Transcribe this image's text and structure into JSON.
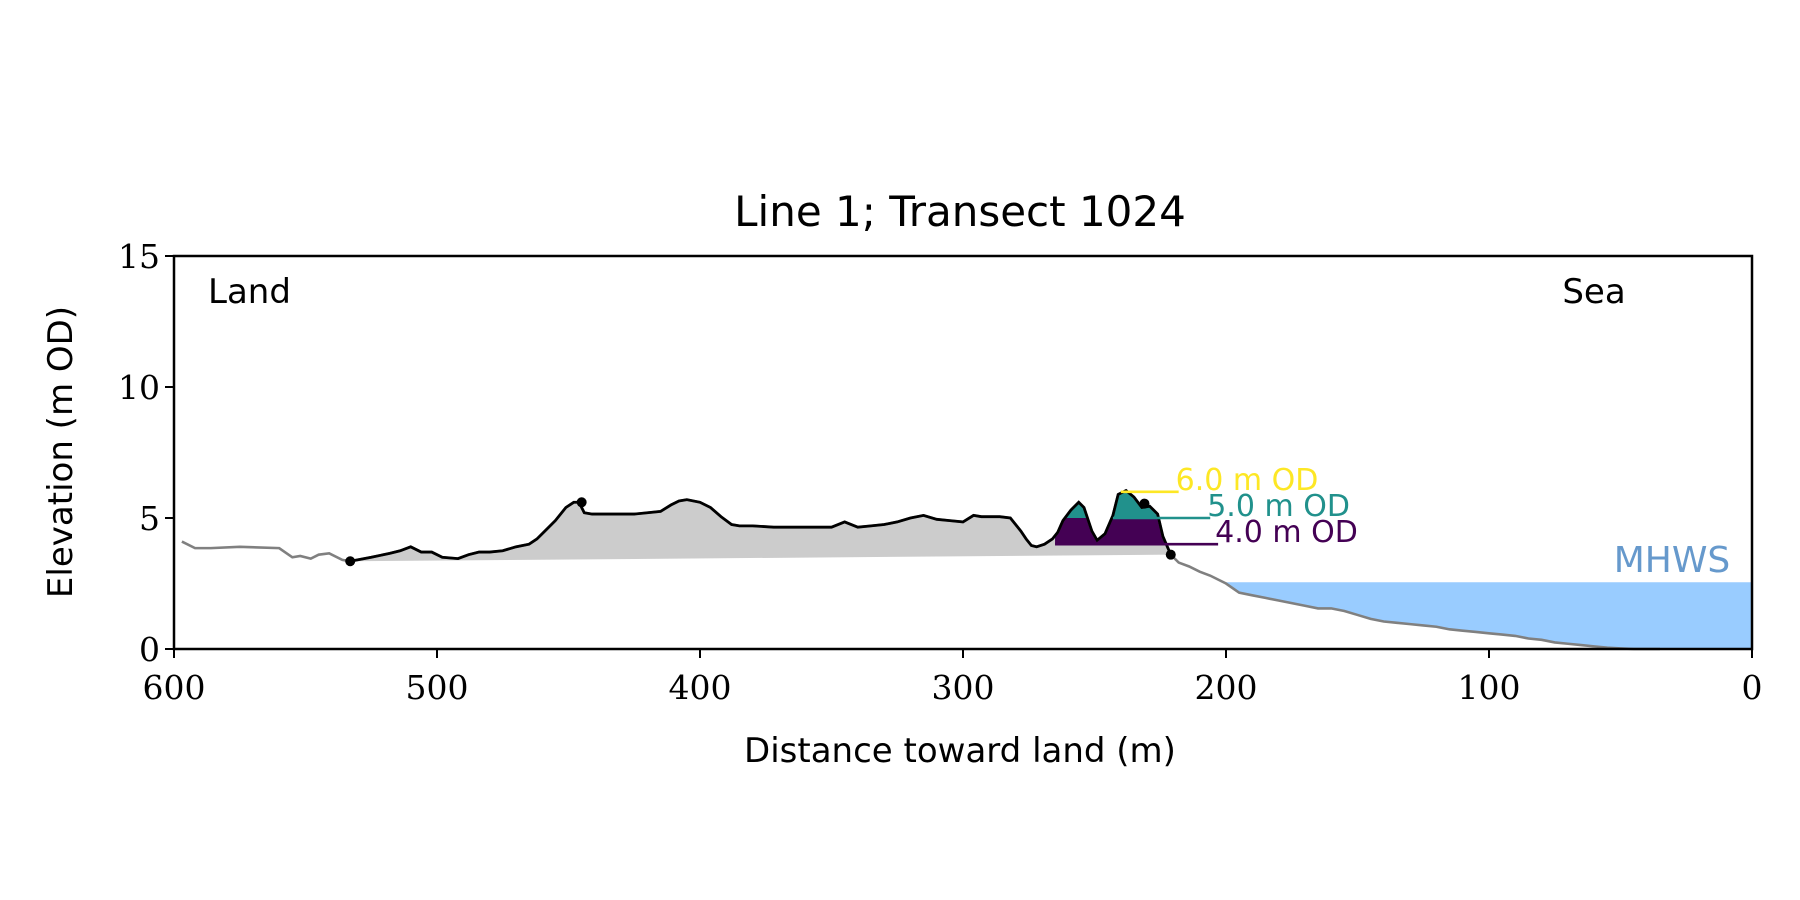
{
  "chart_data": {
    "type": "area",
    "title": "Line 1; Transect 1024",
    "xlabel": "Distance toward land (m)",
    "ylabel": "Elevation (m OD)",
    "xlim": [
      600,
      0
    ],
    "ylim": [
      0,
      15
    ],
    "x_ticks": [
      600,
      500,
      400,
      300,
      200,
      100,
      0
    ],
    "y_ticks": [
      0,
      5,
      10,
      15
    ],
    "grid": false,
    "annotations": {
      "left": "Land",
      "right": "Sea"
    },
    "colors": {
      "profile": "#808080",
      "dune_profile": "#000000",
      "dune_fill": "#cccccc",
      "sea": "#99ccff",
      "mhws_label": "#6699cc",
      "level_6": "#fde725",
      "level_5": "#21918c",
      "level_4": "#440154"
    },
    "mhws": {
      "label": "MHWS",
      "elevation": 2.55,
      "x_start": 200
    },
    "profile": {
      "x": [
        597,
        592,
        586,
        575,
        560,
        555,
        552,
        548,
        545,
        541,
        536,
        533,
        525,
        518,
        514,
        510,
        506,
        502,
        498,
        492,
        488,
        484,
        480,
        475,
        470,
        465,
        462,
        459,
        455,
        451,
        448,
        446,
        444,
        441,
        438,
        433,
        425,
        420,
        415,
        411,
        408,
        405,
        400,
        396,
        392,
        388,
        385,
        380,
        372,
        365,
        360,
        350,
        345,
        340,
        335,
        330,
        325,
        320,
        315,
        310,
        305,
        300,
        296,
        293,
        290,
        286,
        282,
        278,
        276,
        274,
        272,
        269,
        266,
        264,
        262,
        259,
        256,
        254,
        251,
        249,
        246,
        243,
        241,
        238,
        235,
        232,
        229,
        226,
        224,
        221,
        218,
        214,
        210,
        206,
        200,
        195,
        190,
        185,
        180,
        175,
        170,
        165,
        160,
        155,
        150,
        145,
        140,
        135,
        130,
        125,
        120,
        115,
        110,
        105,
        100,
        95,
        90,
        85,
        80,
        75,
        70,
        65,
        60,
        55,
        50,
        45,
        40,
        35
      ],
      "y": [
        4.1,
        3.85,
        3.85,
        3.9,
        3.85,
        3.5,
        3.55,
        3.45,
        3.6,
        3.65,
        3.4,
        3.35,
        3.5,
        3.65,
        3.75,
        3.9,
        3.7,
        3.7,
        3.5,
        3.45,
        3.6,
        3.7,
        3.7,
        3.75,
        3.9,
        4.0,
        4.2,
        4.5,
        4.9,
        5.4,
        5.6,
        5.6,
        5.2,
        5.15,
        5.15,
        5.15,
        5.15,
        5.2,
        5.25,
        5.5,
        5.65,
        5.7,
        5.6,
        5.4,
        5.05,
        4.75,
        4.7,
        4.7,
        4.65,
        4.65,
        4.65,
        4.65,
        4.85,
        4.65,
        4.7,
        4.75,
        4.85,
        5.0,
        5.1,
        4.95,
        4.9,
        4.85,
        5.1,
        5.05,
        5.05,
        5.05,
        5.0,
        4.5,
        4.2,
        3.95,
        3.9,
        4.0,
        4.2,
        4.45,
        4.9,
        5.3,
        5.6,
        5.4,
        4.5,
        4.15,
        4.4,
        5.1,
        5.9,
        6.05,
        5.8,
        5.4,
        5.45,
        5.15,
        4.3,
        3.6,
        3.3,
        3.15,
        2.95,
        2.8,
        2.5,
        2.15,
        2.05,
        1.95,
        1.85,
        1.75,
        1.65,
        1.55,
        1.55,
        1.45,
        1.3,
        1.15,
        1.05,
        1.0,
        0.95,
        0.9,
        0.85,
        0.75,
        0.7,
        0.65,
        0.6,
        0.55,
        0.5,
        0.4,
        0.35,
        0.25,
        0.2,
        0.15,
        0.1,
        0.05,
        0.02,
        0.0,
        0.0,
        0.0
      ]
    },
    "dune": {
      "x_start": 533,
      "x_end": 221,
      "points": [
        {
          "x": 533,
          "y": 3.35
        },
        {
          "x": 445,
          "y": 5.6
        },
        {
          "x": 231,
          "y": 5.55
        },
        {
          "x": 221,
          "y": 3.6
        }
      ]
    },
    "levels": [
      {
        "label": "6.0 m OD",
        "elevation": 6.0,
        "color_key": "level_6"
      },
      {
        "label": "5.0 m OD",
        "elevation": 5.0,
        "color_key": "level_5"
      },
      {
        "label": "4.0 m OD",
        "elevation": 4.0,
        "color_key": "level_4"
      }
    ]
  }
}
